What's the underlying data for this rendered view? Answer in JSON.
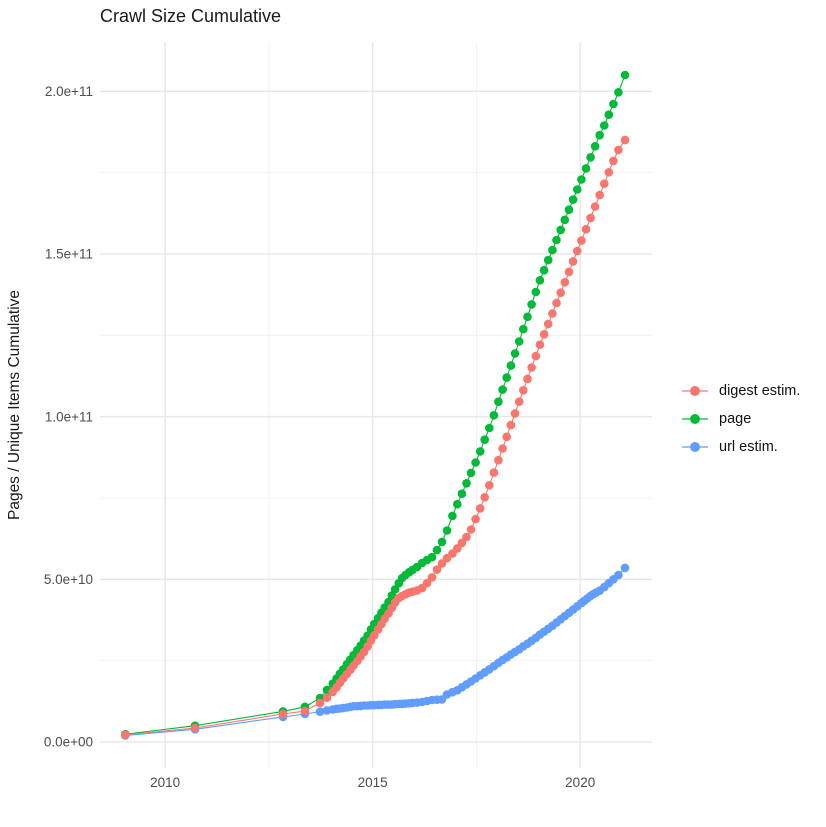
{
  "chart": {
    "title": "Crawl Size Cumulative",
    "y_axis_title": "Pages / Unique Items Cumulative"
  },
  "colors": {
    "background": "#FFFFFF",
    "grid_major": "#E7E7E7",
    "grid_minor": "#F0F0F0",
    "tick_label": "#4D4D4D",
    "title_text": "#1A1A1A",
    "series_digest": "#F8766D",
    "series_page": "#00BA38",
    "series_url": "#619CFF"
  },
  "chart_data": {
    "type": "scatter",
    "title": "Crawl Size Cumulative",
    "xlabel": "",
    "ylabel": "Pages / Unique Items Cumulative",
    "legend_position": "right",
    "grid": true,
    "x_axis": {
      "lim": [
        2008.43,
        2021.73
      ],
      "major_ticks": [
        {
          "value": 2010,
          "label": "2010"
        },
        {
          "value": 2015,
          "label": "2015"
        },
        {
          "value": 2020,
          "label": "2020"
        }
      ],
      "minor_ticks": [
        2012.5,
        2017.5
      ]
    },
    "y_axis": {
      "unit_note": "values in billions of pages / unique items",
      "lim_billion": [
        -8.15,
        215.15
      ],
      "major_ticks": [
        {
          "value_billion": 0,
          "label": "0.0e+00"
        },
        {
          "value_billion": 50,
          "label": "5.0e+10"
        },
        {
          "value_billion": 100,
          "label": "1.0e+11"
        },
        {
          "value_billion": 150,
          "label": "1.5e+11"
        },
        {
          "value_billion": 200,
          "label": "2.0e+11"
        }
      ],
      "minor_ticks_billion": [
        25,
        75,
        125,
        175
      ]
    },
    "series": [
      {
        "name": "digest estim.",
        "color": "#F8766D",
        "points_year_billion": [
          [
            2009.04,
            2.2
          ],
          [
            2010.72,
            4.3
          ],
          [
            2012.84,
            8.6
          ],
          [
            2013.37,
            9.5
          ],
          [
            2013.73,
            12.0
          ],
          [
            2013.9,
            13.6
          ],
          [
            2014.04,
            15.4
          ],
          [
            2014.13,
            16.8
          ],
          [
            2014.21,
            18.2
          ],
          [
            2014.29,
            19.5
          ],
          [
            2014.38,
            20.9
          ],
          [
            2014.46,
            22.2
          ],
          [
            2014.54,
            23.5
          ],
          [
            2014.63,
            24.9
          ],
          [
            2014.71,
            26.3
          ],
          [
            2014.79,
            27.7
          ],
          [
            2014.88,
            29.4
          ],
          [
            2014.96,
            31.2
          ],
          [
            2015.04,
            32.8
          ],
          [
            2015.13,
            34.6
          ],
          [
            2015.21,
            36.2
          ],
          [
            2015.29,
            37.9
          ],
          [
            2015.38,
            39.5
          ],
          [
            2015.46,
            41.2
          ],
          [
            2015.54,
            42.9
          ],
          [
            2015.63,
            44.3
          ],
          [
            2015.71,
            44.9
          ],
          [
            2015.79,
            45.4
          ],
          [
            2015.88,
            45.9
          ],
          [
            2015.96,
            46.2
          ],
          [
            2016.07,
            46.6
          ],
          [
            2016.19,
            47.3
          ],
          [
            2016.31,
            48.8
          ],
          [
            2016.43,
            50.6
          ],
          [
            2016.55,
            53.0
          ],
          [
            2016.67,
            54.9
          ],
          [
            2016.79,
            56.5
          ],
          [
            2016.92,
            57.9
          ],
          [
            2017.04,
            59.5
          ],
          [
            2017.15,
            61.2
          ],
          [
            2017.26,
            63.0
          ],
          [
            2017.37,
            65.3
          ],
          [
            2017.48,
            68.5
          ],
          [
            2017.59,
            71.8
          ],
          [
            2017.7,
            75.2
          ],
          [
            2017.81,
            78.9
          ],
          [
            2017.92,
            82.8
          ],
          [
            2018.03,
            86.6
          ],
          [
            2018.13,
            90.2
          ],
          [
            2018.23,
            93.8
          ],
          [
            2018.33,
            97.4
          ],
          [
            2018.43,
            101.0
          ],
          [
            2018.53,
            104.6
          ],
          [
            2018.63,
            108.1
          ],
          [
            2018.73,
            111.6
          ],
          [
            2018.83,
            115.1
          ],
          [
            2018.93,
            118.6
          ],
          [
            2019.03,
            122.1
          ],
          [
            2019.13,
            125.3
          ],
          [
            2019.23,
            128.5
          ],
          [
            2019.33,
            131.7
          ],
          [
            2019.43,
            134.9
          ],
          [
            2019.53,
            138.1
          ],
          [
            2019.63,
            141.3
          ],
          [
            2019.73,
            144.5
          ],
          [
            2019.83,
            147.7
          ],
          [
            2019.93,
            150.9
          ],
          [
            2020.03,
            154.1
          ],
          [
            2020.14,
            157.6
          ],
          [
            2020.25,
            161.1
          ],
          [
            2020.36,
            164.6
          ],
          [
            2020.47,
            168.1
          ],
          [
            2020.58,
            171.6
          ],
          [
            2020.69,
            175.1
          ],
          [
            2020.8,
            178.6
          ],
          [
            2020.92,
            182.0
          ],
          [
            2021.08,
            185.0
          ]
        ]
      },
      {
        "name": "page",
        "color": "#00BA38",
        "points_year_billion": [
          [
            2009.04,
            2.4
          ],
          [
            2010.72,
            5.0
          ],
          [
            2012.84,
            9.4
          ],
          [
            2013.37,
            10.8
          ],
          [
            2013.73,
            13.5
          ],
          [
            2013.9,
            16.0
          ],
          [
            2014.04,
            17.9
          ],
          [
            2014.13,
            19.5
          ],
          [
            2014.21,
            21.0
          ],
          [
            2014.29,
            22.3
          ],
          [
            2014.38,
            23.9
          ],
          [
            2014.46,
            25.3
          ],
          [
            2014.54,
            26.7
          ],
          [
            2014.63,
            28.2
          ],
          [
            2014.71,
            29.6
          ],
          [
            2014.79,
            31.2
          ],
          [
            2014.88,
            32.7
          ],
          [
            2014.96,
            34.6
          ],
          [
            2015.04,
            36.3
          ],
          [
            2015.13,
            38.1
          ],
          [
            2015.21,
            39.7
          ],
          [
            2015.29,
            41.3
          ],
          [
            2015.38,
            43.0
          ],
          [
            2015.46,
            45.0
          ],
          [
            2015.54,
            46.9
          ],
          [
            2015.63,
            48.8
          ],
          [
            2015.71,
            50.4
          ],
          [
            2015.79,
            51.3
          ],
          [
            2015.88,
            52.2
          ],
          [
            2015.96,
            52.9
          ],
          [
            2016.07,
            53.8
          ],
          [
            2016.19,
            55.0
          ],
          [
            2016.31,
            55.9
          ],
          [
            2016.43,
            56.8
          ],
          [
            2016.55,
            59.0
          ],
          [
            2016.67,
            61.5
          ],
          [
            2016.79,
            65.0
          ],
          [
            2016.92,
            69.5
          ],
          [
            2017.04,
            73.1
          ],
          [
            2017.15,
            76.3
          ],
          [
            2017.26,
            79.5
          ],
          [
            2017.37,
            82.7
          ],
          [
            2017.48,
            85.9
          ],
          [
            2017.59,
            89.3
          ],
          [
            2017.7,
            92.9
          ],
          [
            2017.81,
            96.5
          ],
          [
            2017.92,
            100.4
          ],
          [
            2018.03,
            104.6
          ],
          [
            2018.13,
            108.3
          ],
          [
            2018.23,
            112.0
          ],
          [
            2018.33,
            115.7
          ],
          [
            2018.43,
            119.4
          ],
          [
            2018.53,
            123.1
          ],
          [
            2018.63,
            126.9
          ],
          [
            2018.73,
            130.7
          ],
          [
            2018.83,
            134.5
          ],
          [
            2018.93,
            138.3
          ],
          [
            2019.03,
            141.9
          ],
          [
            2019.13,
            145.0
          ],
          [
            2019.23,
            148.1
          ],
          [
            2019.33,
            151.2
          ],
          [
            2019.43,
            154.3
          ],
          [
            2019.53,
            157.4
          ],
          [
            2019.63,
            160.5
          ],
          [
            2019.73,
            163.6
          ],
          [
            2019.83,
            166.7
          ],
          [
            2019.93,
            169.8
          ],
          [
            2020.03,
            172.9
          ],
          [
            2020.14,
            176.3
          ],
          [
            2020.25,
            179.7
          ],
          [
            2020.36,
            183.1
          ],
          [
            2020.47,
            186.5
          ],
          [
            2020.58,
            189.5
          ],
          [
            2020.69,
            192.8
          ],
          [
            2020.8,
            196.1
          ],
          [
            2020.92,
            199.7
          ],
          [
            2021.08,
            205.0
          ]
        ]
      },
      {
        "name": "url estim.",
        "color": "#619CFF",
        "points_year_billion": [
          [
            2009.04,
            2.0
          ],
          [
            2010.72,
            3.9
          ],
          [
            2012.84,
            7.7
          ],
          [
            2013.37,
            8.6
          ],
          [
            2013.73,
            9.3
          ],
          [
            2013.9,
            9.7
          ],
          [
            2014.04,
            10.0
          ],
          [
            2014.13,
            10.2
          ],
          [
            2014.21,
            10.3
          ],
          [
            2014.29,
            10.4
          ],
          [
            2014.38,
            10.6
          ],
          [
            2014.46,
            10.8
          ],
          [
            2014.54,
            11.0
          ],
          [
            2014.63,
            11.0
          ],
          [
            2014.71,
            11.1
          ],
          [
            2014.79,
            11.2
          ],
          [
            2014.88,
            11.2
          ],
          [
            2014.96,
            11.3
          ],
          [
            2015.04,
            11.3
          ],
          [
            2015.13,
            11.4
          ],
          [
            2015.21,
            11.4
          ],
          [
            2015.29,
            11.5
          ],
          [
            2015.38,
            11.5
          ],
          [
            2015.46,
            11.5
          ],
          [
            2015.54,
            11.6
          ],
          [
            2015.63,
            11.7
          ],
          [
            2015.71,
            11.7
          ],
          [
            2015.79,
            11.8
          ],
          [
            2015.88,
            11.9
          ],
          [
            2015.96,
            12.0
          ],
          [
            2016.07,
            12.1
          ],
          [
            2016.19,
            12.3
          ],
          [
            2016.31,
            12.6
          ],
          [
            2016.43,
            12.9
          ],
          [
            2016.55,
            13.0
          ],
          [
            2016.67,
            13.1
          ],
          [
            2016.79,
            14.6
          ],
          [
            2016.92,
            15.3
          ],
          [
            2017.04,
            15.9
          ],
          [
            2017.15,
            16.8
          ],
          [
            2017.26,
            17.7
          ],
          [
            2017.37,
            18.6
          ],
          [
            2017.48,
            19.5
          ],
          [
            2017.59,
            20.5
          ],
          [
            2017.7,
            21.4
          ],
          [
            2017.81,
            22.3
          ],
          [
            2017.92,
            23.3
          ],
          [
            2018.03,
            24.3
          ],
          [
            2018.13,
            25.2
          ],
          [
            2018.23,
            26.0
          ],
          [
            2018.33,
            26.9
          ],
          [
            2018.43,
            27.7
          ],
          [
            2018.53,
            28.5
          ],
          [
            2018.63,
            29.4
          ],
          [
            2018.73,
            30.2
          ],
          [
            2018.83,
            31.1
          ],
          [
            2018.93,
            32.0
          ],
          [
            2019.03,
            33.0
          ],
          [
            2019.13,
            33.9
          ],
          [
            2019.23,
            34.8
          ],
          [
            2019.33,
            35.7
          ],
          [
            2019.43,
            36.7
          ],
          [
            2019.53,
            37.7
          ],
          [
            2019.63,
            38.7
          ],
          [
            2019.73,
            39.7
          ],
          [
            2019.83,
            40.7
          ],
          [
            2019.93,
            41.7
          ],
          [
            2020.03,
            42.7
          ],
          [
            2020.1,
            43.4
          ],
          [
            2020.17,
            44.1
          ],
          [
            2020.24,
            44.8
          ],
          [
            2020.31,
            45.4
          ],
          [
            2020.38,
            45.9
          ],
          [
            2020.47,
            46.5
          ],
          [
            2020.58,
            47.6
          ],
          [
            2020.69,
            48.8
          ],
          [
            2020.8,
            50.0
          ],
          [
            2020.92,
            51.3
          ],
          [
            2021.08,
            53.5
          ]
        ]
      }
    ]
  }
}
